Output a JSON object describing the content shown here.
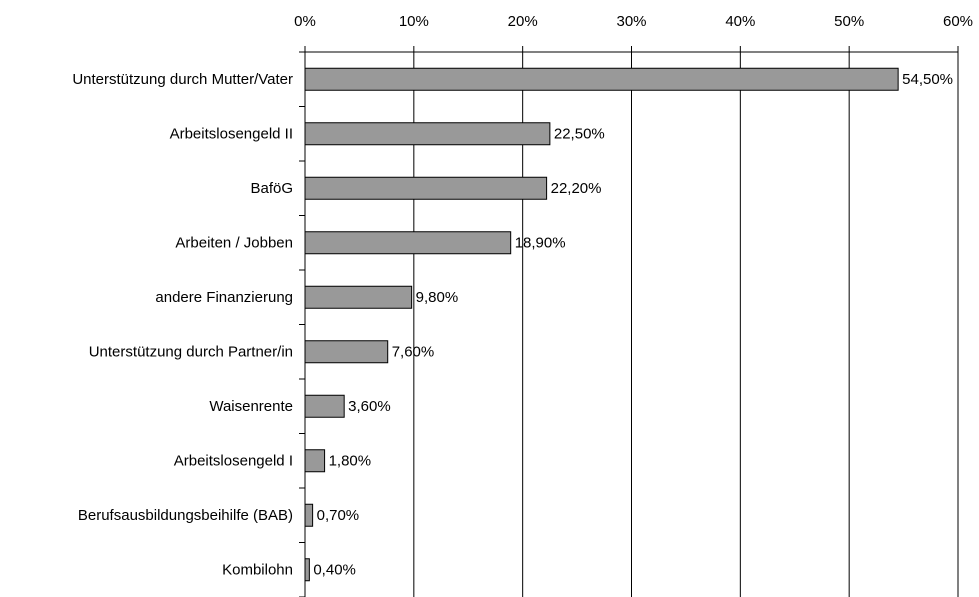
{
  "chart_data": {
    "type": "bar",
    "orientation": "horizontal",
    "categories": [
      "Unterstützung durch Mutter/Vater",
      "Arbeitslosengeld II",
      "BaföG",
      "Arbeiten / Jobben",
      "andere Finanzierung",
      "Unterstützung durch Partner/in",
      "Waisenrente",
      "Arbeitslosengeld I",
      "Berufsausbildungsbeihilfe (BAB)",
      "Kombilohn"
    ],
    "values": [
      54.5,
      22.5,
      22.2,
      18.9,
      9.8,
      7.6,
      3.6,
      1.8,
      0.7,
      0.4
    ],
    "value_labels": [
      "54,50%",
      "22,50%",
      "22,20%",
      "18,90%",
      "9,80%",
      "7,60%",
      "3,60%",
      "1,80%",
      "0,70%",
      "0,40%"
    ],
    "color": "#999999",
    "xlim": [
      0,
      60
    ],
    "xticks": [
      {
        "value": 0,
        "label": "0%"
      },
      {
        "value": 10,
        "label": "10%"
      },
      {
        "value": 20,
        "label": "20%"
      },
      {
        "value": 30,
        "label": "30%"
      },
      {
        "value": 40,
        "label": "40%"
      },
      {
        "value": 50,
        "label": "50%"
      },
      {
        "value": 60,
        "label": "60%"
      }
    ],
    "grid": true
  }
}
